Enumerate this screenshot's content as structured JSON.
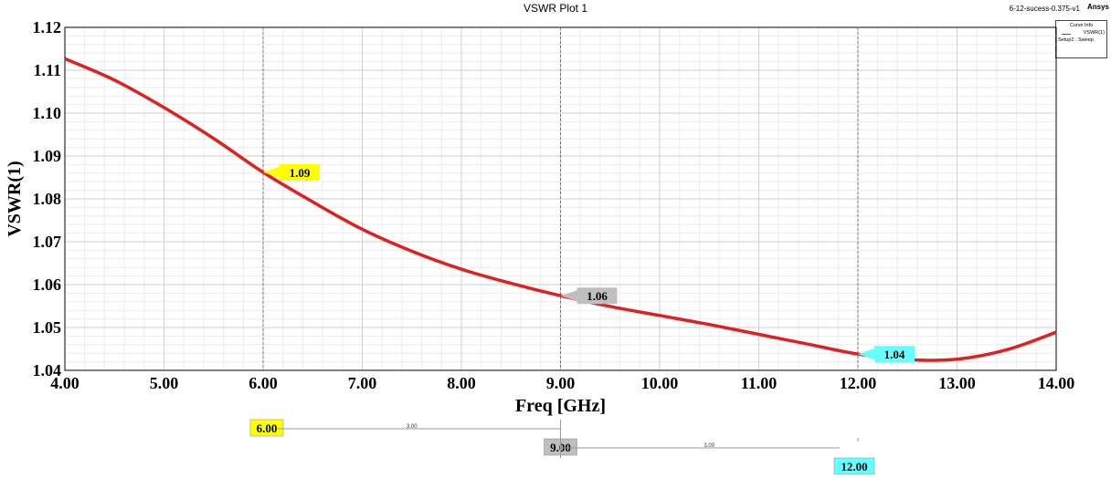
{
  "header": {
    "title": "VSWR Plot 1",
    "project": "6-12-sucess-0.375-v1",
    "brand": "Ansys"
  },
  "legend": {
    "title": "Curve Info",
    "series_name": "VSWR(1)",
    "setup": "Setup1 : Sweep"
  },
  "chart_data": {
    "type": "line",
    "xlabel": "Freq [GHz]",
    "ylabel": "VSWR(1)",
    "xlim": [
      4.0,
      14.0
    ],
    "ylim": [
      1.04,
      1.12
    ],
    "x_ticks": [
      "4.00",
      "5.00",
      "6.00",
      "7.00",
      "8.00",
      "9.00",
      "10.00",
      "11.00",
      "12.00",
      "13.00",
      "14.00"
    ],
    "y_ticks": [
      "1.04",
      "1.05",
      "1.06",
      "1.07",
      "1.08",
      "1.09",
      "1.10",
      "1.11",
      "1.12"
    ],
    "grid": true,
    "legend_position": "top-right",
    "series": [
      {
        "name": "VSWR(1)",
        "color": "#e02020",
        "x": [
          4.0,
          4.5,
          5.0,
          5.5,
          6.0,
          6.5,
          7.0,
          7.5,
          8.0,
          8.5,
          9.0,
          9.5,
          10.0,
          10.5,
          11.0,
          11.5,
          12.0,
          12.5,
          13.0,
          13.5,
          14.0
        ],
        "y": [
          1.1127,
          1.1077,
          1.1013,
          1.0941,
          1.0862,
          1.0793,
          1.0729,
          1.0678,
          1.0636,
          1.0603,
          1.0574,
          1.0549,
          1.0528,
          1.0507,
          1.0484,
          1.0461,
          1.0438,
          1.0425,
          1.0426,
          1.0448,
          1.0489
        ]
      }
    ],
    "markers": [
      {
        "x": 6.0,
        "y": 1.0862,
        "label": "1.09",
        "x_label": "6.00",
        "color": "#ffff00"
      },
      {
        "x": 9.0,
        "y": 1.0574,
        "label": "1.06",
        "x_label": "9.00",
        "color": "#bfbfbf"
      },
      {
        "x": 12.0,
        "y": 1.0438,
        "label": "1.04",
        "x_label": "12.00",
        "color": "#66ffff"
      }
    ],
    "deltas": [
      {
        "from": 6.0,
        "to": 9.0,
        "label": "3.00"
      },
      {
        "from": 9.0,
        "to": 12.0,
        "label": "3.00"
      }
    ]
  }
}
